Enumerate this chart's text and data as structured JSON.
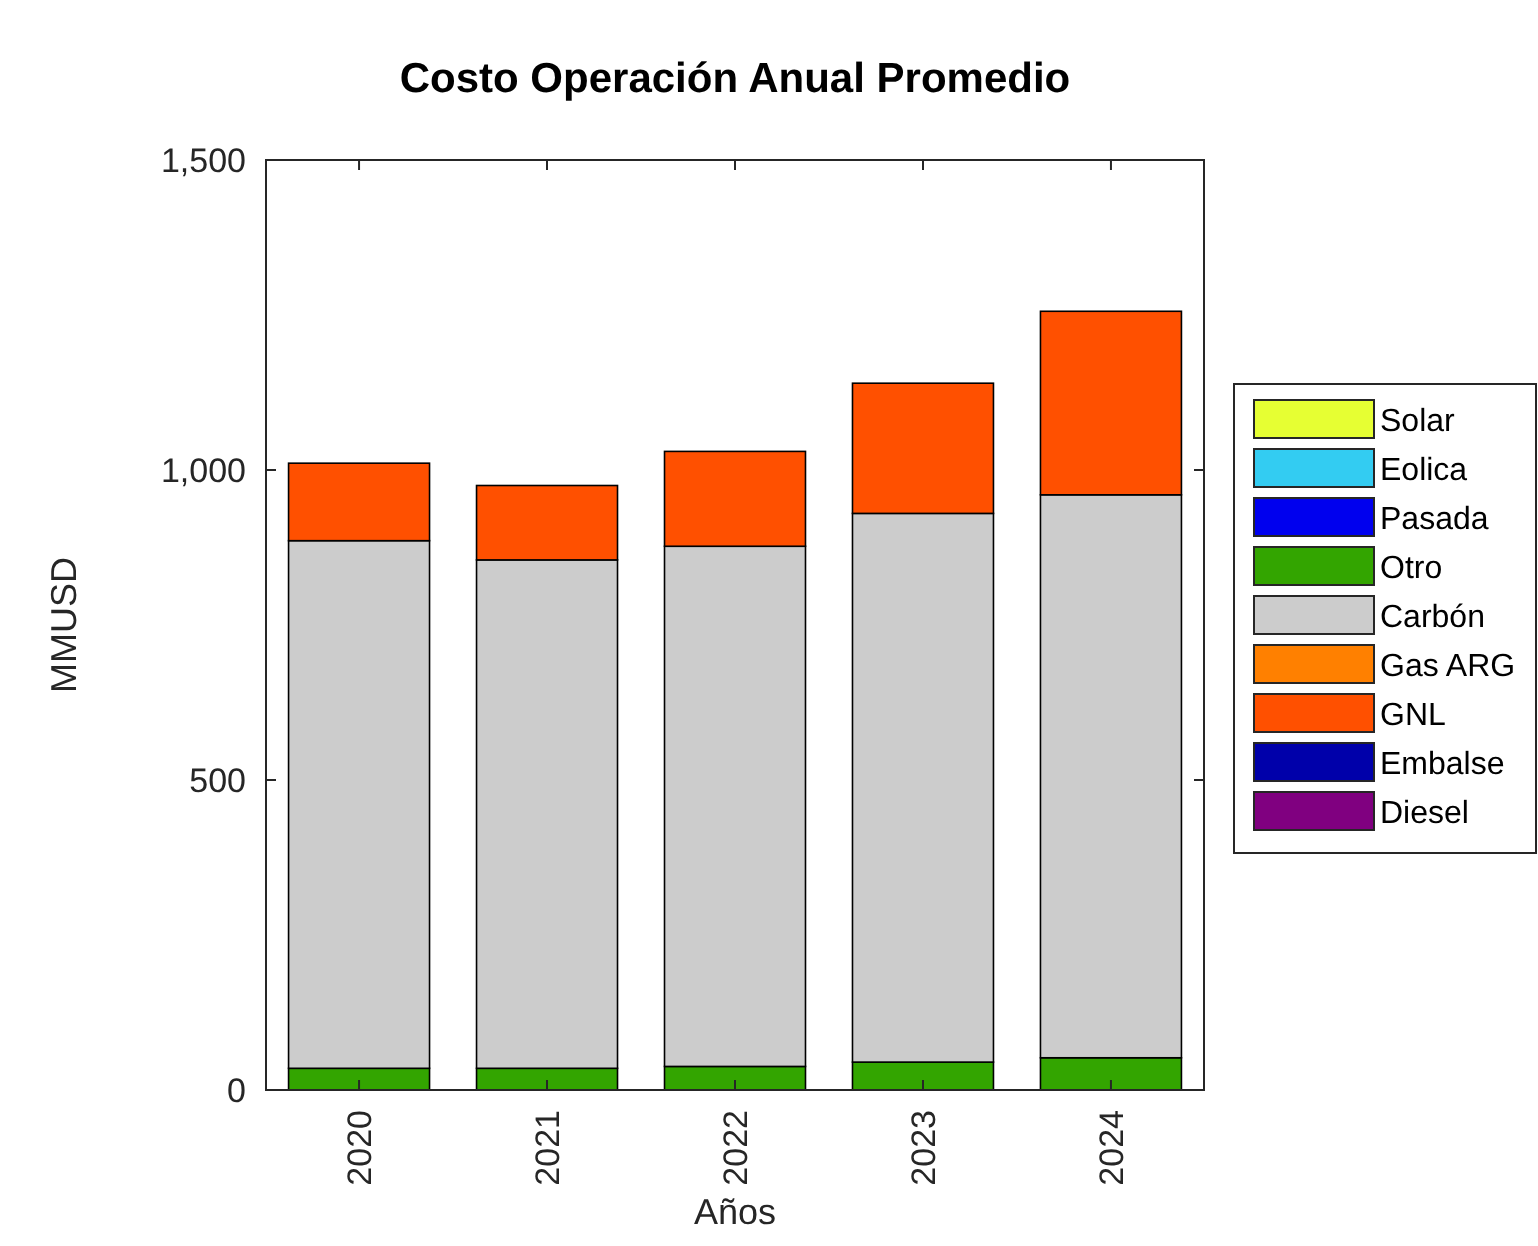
{
  "chart_data": {
    "type": "bar",
    "title": "Costo Operación Anual Promedio",
    "xlabel": "Años",
    "ylabel": "MMUSD",
    "stacked": true,
    "categories": [
      "2020",
      "2021",
      "2022",
      "2023",
      "2024"
    ],
    "series": [
      {
        "name": "Solar",
        "color": "#e6ff33",
        "values": [
          0,
          0,
          0,
          0,
          0
        ]
      },
      {
        "name": "Eolica",
        "color": "#33ccf2",
        "values": [
          0,
          0,
          0,
          0,
          0
        ]
      },
      {
        "name": "Pasada",
        "color": "#0000ee",
        "values": [
          0,
          0,
          0,
          0,
          0
        ]
      },
      {
        "name": "Otro",
        "color": "#33a500",
        "values": [
          35,
          35,
          38,
          45,
          52
        ]
      },
      {
        "name": "Carbón",
        "color": "#cccccc",
        "values": [
          851,
          820,
          839,
          885,
          908
        ]
      },
      {
        "name": "Gas ARG",
        "color": "#ff8000",
        "values": [
          0,
          0,
          0,
          0,
          0
        ]
      },
      {
        "name": "GNL",
        "color": "#ff5000",
        "values": [
          125,
          120,
          153,
          210,
          296
        ]
      },
      {
        "name": "Embalse",
        "color": "#0000aa",
        "values": [
          0,
          0,
          0,
          0,
          0
        ]
      },
      {
        "name": "Diesel",
        "color": "#800080",
        "values": [
          0,
          0,
          0,
          0,
          0
        ]
      }
    ],
    "ylim": [
      0,
      1500
    ],
    "yticks": [
      0,
      500,
      {
        "value": 1000,
        "label": "1,000"
      },
      {
        "value": 1500,
        "label": "1,500"
      }
    ],
    "grid": false,
    "legend": "right"
  }
}
